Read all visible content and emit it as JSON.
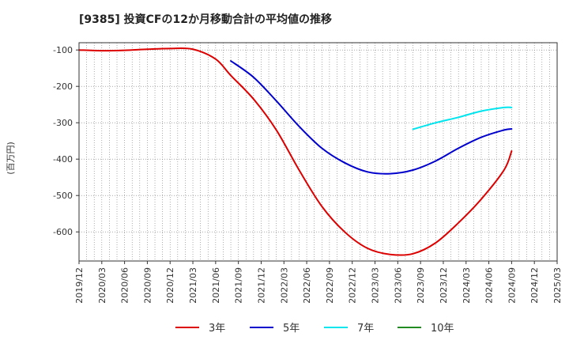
{
  "chart_data": {
    "type": "line",
    "title": "[9385]  投資CFの12か月移動合計の平均値の推移",
    "ylabel": "(百万円)",
    "xlabel": "",
    "ylim": [
      -680,
      -80
    ],
    "yticks": [
      -100,
      -200,
      -300,
      -400,
      -500,
      -600
    ],
    "xticks": [
      "2019/12",
      "2020/03",
      "2020/06",
      "2020/09",
      "2020/12",
      "2021/03",
      "2021/06",
      "2021/09",
      "2021/12",
      "2022/03",
      "2022/06",
      "2022/09",
      "2022/12",
      "2023/03",
      "2023/06",
      "2023/09",
      "2023/12",
      "2024/03",
      "2024/06",
      "2024/09",
      "2024/12",
      "2025/03"
    ],
    "grid": true,
    "legend_position": "bottom",
    "series": [
      {
        "name": "3年",
        "color": "#dd0000",
        "points": [
          [
            "2019/12",
            -100
          ],
          [
            "2020/03",
            -102
          ],
          [
            "2020/06",
            -101
          ],
          [
            "2020/09",
            -98
          ],
          [
            "2020/12",
            -96
          ],
          [
            "2021/03",
            -98
          ],
          [
            "2021/06",
            -125
          ],
          [
            "2021/08",
            -170
          ],
          [
            "2021/11",
            -235
          ],
          [
            "2022/02",
            -320
          ],
          [
            "2022/05",
            -430
          ],
          [
            "2022/08",
            -530
          ],
          [
            "2022/11",
            -600
          ],
          [
            "2023/02",
            -645
          ],
          [
            "2023/05",
            -662
          ],
          [
            "2023/08",
            -660
          ],
          [
            "2023/11",
            -630
          ],
          [
            "2024/02",
            -575
          ],
          [
            "2024/05",
            -510
          ],
          [
            "2024/08",
            -430
          ],
          [
            "2024/09",
            -378
          ]
        ]
      },
      {
        "name": "5年",
        "color": "#0000cc",
        "points": [
          [
            "2021/08",
            -130
          ],
          [
            "2021/11",
            -175
          ],
          [
            "2022/02",
            -240
          ],
          [
            "2022/05",
            -310
          ],
          [
            "2022/08",
            -370
          ],
          [
            "2022/11",
            -410
          ],
          [
            "2023/02",
            -435
          ],
          [
            "2023/05",
            -440
          ],
          [
            "2023/08",
            -430
          ],
          [
            "2023/11",
            -405
          ],
          [
            "2024/02",
            -370
          ],
          [
            "2024/05",
            -340
          ],
          [
            "2024/08",
            -320
          ],
          [
            "2024/09",
            -317
          ]
        ]
      },
      {
        "name": "7年",
        "color": "#00e5ee",
        "points": [
          [
            "2023/08",
            -318
          ],
          [
            "2023/11",
            -300
          ],
          [
            "2024/02",
            -285
          ],
          [
            "2024/05",
            -268
          ],
          [
            "2024/08",
            -258
          ],
          [
            "2024/09",
            -258
          ]
        ]
      },
      {
        "name": "10年",
        "color": "#228b22",
        "points": []
      }
    ]
  }
}
